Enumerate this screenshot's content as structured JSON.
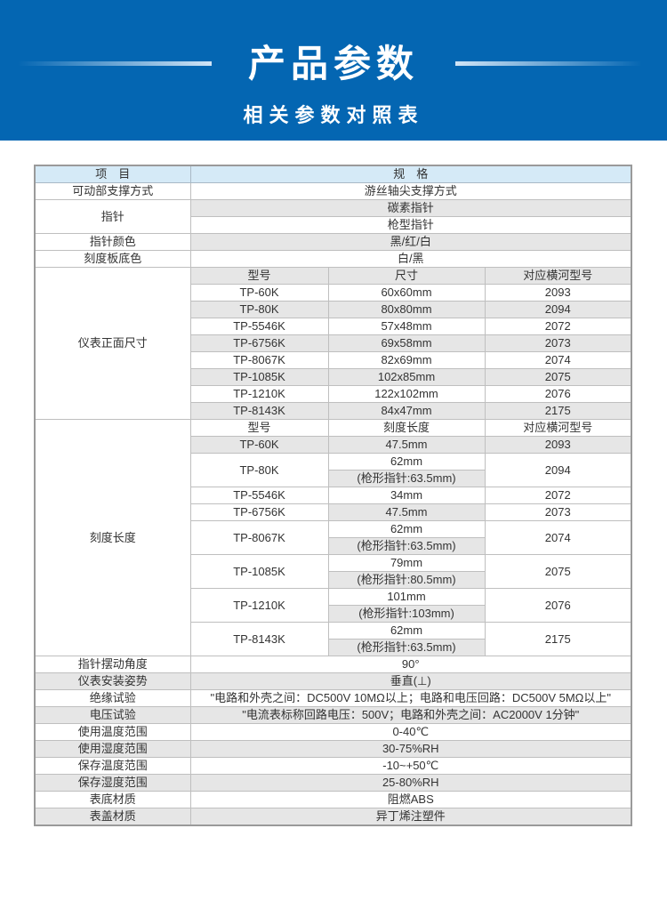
{
  "header": {
    "title": "产品参数",
    "subtitle": "相关参数对照表",
    "color": "#0466b2"
  },
  "table": {
    "head": [
      "项　目",
      "规　格"
    ],
    "support": {
      "label": "可动部支撑方式",
      "value": "游丝轴尖支撑方式"
    },
    "pointer": {
      "label": "指针",
      "values": [
        "碳素指针",
        "枪型指针"
      ]
    },
    "pointer_color": {
      "label": "指针颜色",
      "value": "黑/红/白"
    },
    "dial_color": {
      "label": "刻度板底色",
      "value": "白/黑"
    },
    "size": {
      "label": "仪表正面尺寸",
      "columns": [
        "型号",
        "尺寸",
        "对应横河型号"
      ],
      "rows": [
        [
          "TP-60K",
          "60x60mm",
          "2093"
        ],
        [
          "TP-80K",
          "80x80mm",
          "2094"
        ],
        [
          "TP-5546K",
          "57x48mm",
          "2072"
        ],
        [
          "TP-6756K",
          "69x58mm",
          "2073"
        ],
        [
          "TP-8067K",
          "82x69mm",
          "2074"
        ],
        [
          "TP-1085K",
          "102x85mm",
          "2075"
        ],
        [
          "TP-1210K",
          "122x102mm",
          "2076"
        ],
        [
          "TP-8143K",
          "84x47mm",
          "2175"
        ]
      ]
    },
    "scale": {
      "label": "刻度长度",
      "columns": [
        "型号",
        "刻度长度",
        "对应横河型号"
      ],
      "rows": [
        {
          "model": "TP-60K",
          "lengths": [
            "47.5mm"
          ],
          "yokogawa": "2093"
        },
        {
          "model": "TP-80K",
          "lengths": [
            "62mm",
            "(枪形指针:63.5mm)"
          ],
          "yokogawa": "2094"
        },
        {
          "model": "TP-5546K",
          "lengths": [
            "34mm"
          ],
          "yokogawa": "2072"
        },
        {
          "model": "TP-6756K",
          "lengths": [
            "47.5mm"
          ],
          "yokogawa": "2073"
        },
        {
          "model": "TP-8067K",
          "lengths": [
            "62mm",
            "(枪形指针:63.5mm)"
          ],
          "yokogawa": "2074"
        },
        {
          "model": "TP-1085K",
          "lengths": [
            "79mm",
            "(枪形指针:80.5mm)"
          ],
          "yokogawa": "2075"
        },
        {
          "model": "TP-1210K",
          "lengths": [
            "101mm",
            "(枪形指针:103mm)"
          ],
          "yokogawa": "2076"
        },
        {
          "model": "TP-8143K",
          "lengths": [
            "62mm",
            "(枪形指针:63.5mm)"
          ],
          "yokogawa": "2175"
        }
      ]
    },
    "specs": [
      {
        "label": "指针摆动角度",
        "value": "90°"
      },
      {
        "label": "仪表安装姿势",
        "value": "垂直(⊥)"
      },
      {
        "label": "绝缘试验",
        "value": "\"电路和外壳之间：DC500V 10MΩ以上；电路和电压回路：DC500V 5MΩ以上\""
      },
      {
        "label": "电压试验",
        "value": "\"电流表标称回路电压：500V；电路和外壳之间：AC2000V 1分钟\""
      },
      {
        "label": "使用温度范围",
        "value": "0-40℃"
      },
      {
        "label": "使用湿度范围",
        "value": "30-75%RH"
      },
      {
        "label": "保存温度范围",
        "value": "-10~+50℃"
      },
      {
        "label": "保存湿度范围",
        "value": "25-80%RH"
      },
      {
        "label": "表底材质",
        "value": "阻燃ABS"
      },
      {
        "label": "表盖材质",
        "value": "异丁烯注塑件"
      }
    ]
  }
}
